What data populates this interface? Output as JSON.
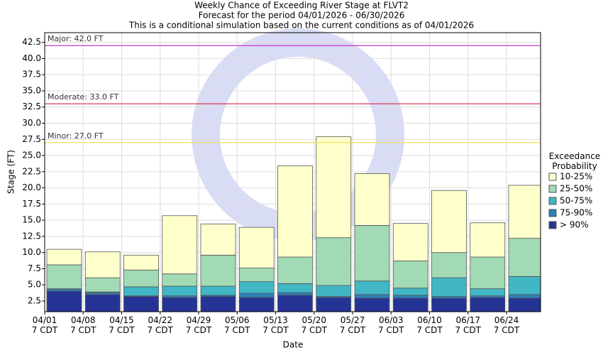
{
  "chart_data": {
    "type": "exceedance",
    "title": "Weekly Chance of Exceeding River Stage at FLVT2",
    "subtitle": "Forecast for the period 04/01/2026 - 06/30/2026",
    "note": "This is a conditional simulation based on the current conditions as of 04/01/2026",
    "x_label": "Date",
    "y_label": "Stage (FT)",
    "legend_title": "Exceedance\nProbability",
    "categories": [
      "04/01\n7 CDT",
      "04/08\n7 CDT",
      "04/15\n7 CDT",
      "04/22\n7 CDT",
      "04/29\n7 CDT",
      "05/06\n7 CDT",
      "05/13\n7 CDT",
      "05/20\n7 CDT",
      "05/27\n7 CDT",
      "06/03\n7 CDT",
      "06/10\n7 CDT",
      "06/17\n7 CDT",
      "06/24\n7 CDT"
    ],
    "series": [
      {
        "name": "> 90%",
        "color": "#253494",
        "values": [
          4.04,
          3.5,
          3.2,
          3.05,
          3.2,
          3.05,
          3.4,
          3.05,
          2.95,
          2.95,
          2.95,
          3.05,
          2.95
        ]
      },
      {
        "name": "75-90%",
        "color": "#2c7fb8",
        "values": [
          4.37,
          3.8,
          3.3,
          3.3,
          3.4,
          3.7,
          3.8,
          3.2,
          3.5,
          3.4,
          3.2,
          3.3,
          3.5
        ]
      },
      {
        "name": "50-75%",
        "color": "#41b6c4",
        "values": [
          4.4,
          3.9,
          4.7,
          4.8,
          4.8,
          5.5,
          5.2,
          4.9,
          5.6,
          4.5,
          6.1,
          4.4,
          6.3
        ]
      },
      {
        "name": "25-50%",
        "color": "#a1dab4",
        "values": [
          8.1,
          6.1,
          7.3,
          6.7,
          9.6,
          7.6,
          9.3,
          12.3,
          14.2,
          8.7,
          10.0,
          9.3,
          12.2
        ]
      },
      {
        "name": "10-25%",
        "color": "#ffffcc",
        "values": [
          10.5,
          10.1,
          9.6,
          15.7,
          14.4,
          13.9,
          23.4,
          27.9,
          22.2,
          14.5,
          19.6,
          14.6,
          20.4
        ]
      }
    ],
    "thresholds": [
      {
        "label": "Major: 42.0 FT",
        "value": 42.0,
        "color": "#cc33cc"
      },
      {
        "label": "Moderate: 33.0 FT",
        "value": 33.0,
        "color": "#dd2244"
      },
      {
        "label": "Minor: 27.0 FT",
        "value": 27.0,
        "color": "#eedd44"
      }
    ],
    "ylim": [
      0.85,
      44
    ],
    "yticks": [
      2.5,
      {
        "value": 5,
        "label": "5.0"
      },
      7.5,
      {
        "value": 10,
        "label": "10.0"
      },
      12.5,
      {
        "value": 15,
        "label": "15.0"
      },
      17.5,
      {
        "value": 20,
        "label": "20.0"
      },
      22.5,
      {
        "value": 25,
        "label": "25.0"
      },
      27.5,
      {
        "value": 30,
        "label": "30.0"
      },
      32.5,
      {
        "value": 35,
        "label": "35.0"
      },
      37.5,
      {
        "value": 40,
        "label": "40.0"
      },
      42.5
    ],
    "grid": true
  }
}
